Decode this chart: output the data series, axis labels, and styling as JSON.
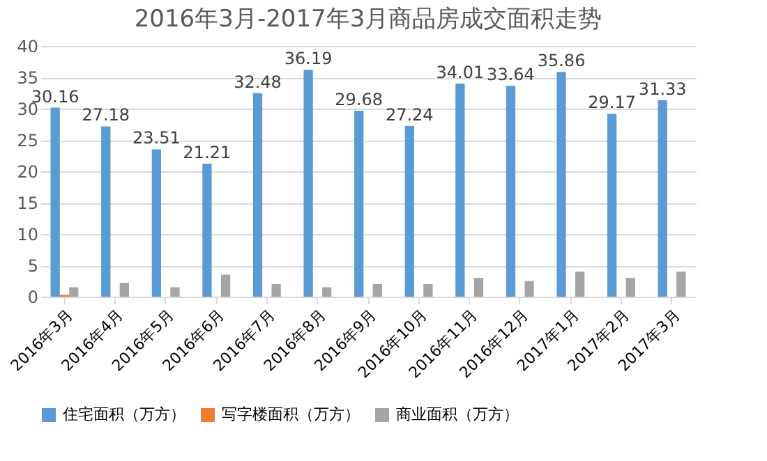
{
  "chart_data": {
    "type": "bar",
    "title": "2016年3月-2017年3月商品房成交面积走势",
    "categories": [
      "2016年3月",
      "2016年4月",
      "2016年5月",
      "2016年6月",
      "2016年7月",
      "2016年8月",
      "2016年9月",
      "2016年10月",
      "2016年11月",
      "2016年12月",
      "2017年1月",
      "2017年2月",
      "2017年3月"
    ],
    "series": [
      {
        "name": "住宅面积（万方）",
        "color": "#5b9bd5",
        "values": [
          30.16,
          27.18,
          23.51,
          21.21,
          32.48,
          36.19,
          29.68,
          27.24,
          34.01,
          33.64,
          35.86,
          29.17,
          31.33
        ],
        "value_labels": [
          "30.16",
          "27.18",
          "23.51",
          "21.21",
          "32.48",
          "36.19",
          "29.68",
          "27.24",
          "34.01",
          "33.64",
          "35.86",
          "29.17",
          "31.33"
        ]
      },
      {
        "name": "写字楼面积（万方）",
        "color": "#ed7d31",
        "values": [
          0.3,
          0,
          0,
          0,
          0,
          0,
          0,
          0,
          0,
          0,
          0,
          0,
          0
        ]
      },
      {
        "name": "商业面积（万方）",
        "color": "#a5a5a5",
        "values": [
          1.5,
          2.2,
          1.5,
          3.5,
          2,
          1.5,
          2,
          2,
          3,
          2.5,
          4,
          3,
          4
        ]
      }
    ],
    "ylim": [
      0,
      40
    ],
    "yticks": [
      0,
      5,
      10,
      15,
      20,
      25,
      30,
      35,
      40
    ],
    "grid": "y",
    "legend": "bottom"
  }
}
